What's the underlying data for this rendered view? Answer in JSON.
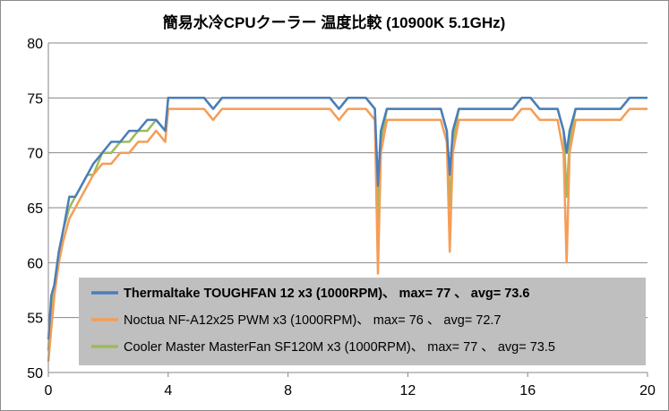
{
  "chart_data": {
    "type": "line",
    "title": "簡易水冷CPUクーラー 温度比較 (10900K 5.1GHz)",
    "xlabel": "",
    "ylabel": "",
    "xlim": [
      0,
      20
    ],
    "ylim": [
      50,
      80
    ],
    "x_ticks": [
      0,
      4,
      8,
      12,
      16,
      20
    ],
    "y_ticks": [
      50,
      55,
      60,
      65,
      70,
      75,
      80
    ],
    "grid": "horizontal",
    "legend_position": "bottom-right, inside plot",
    "series": [
      {
        "name": "Thermaltake TOUGHFAN 12 x3 (1000RPM)、 max= 77 、 avg= 73.6",
        "color": "#4a7ebb",
        "bold_label": true,
        "x": [
          0,
          0.1,
          0.2,
          0.35,
          0.5,
          0.7,
          0.9,
          1.1,
          1.3,
          1.5,
          1.8,
          2.1,
          2.4,
          2.7,
          3.0,
          3.3,
          3.6,
          3.9,
          4.0,
          4.3,
          4.6,
          4.9,
          5.2,
          5.5,
          5.8,
          6.1,
          6.4,
          6.7,
          7.0,
          7.3,
          7.6,
          7.9,
          8.2,
          8.5,
          8.8,
          9.1,
          9.4,
          9.7,
          10.0,
          10.3,
          10.6,
          10.9,
          11.0,
          11.1,
          11.3,
          11.6,
          11.9,
          12.2,
          12.5,
          12.8,
          13.1,
          13.3,
          13.4,
          13.5,
          13.7,
          14.0,
          14.3,
          14.6,
          14.9,
          15.2,
          15.5,
          15.8,
          16.1,
          16.4,
          16.7,
          17.0,
          17.2,
          17.3,
          17.4,
          17.6,
          17.9,
          18.2,
          18.5,
          18.8,
          19.1,
          19.4,
          19.7,
          20.0
        ],
        "values": [
          53,
          57,
          58,
          61,
          63,
          66,
          66,
          67,
          68,
          69,
          70,
          71,
          71,
          72,
          72,
          73,
          73,
          72,
          75,
          75,
          75,
          75,
          75,
          74,
          75,
          75,
          75,
          75,
          75,
          75,
          75,
          75,
          75,
          75,
          75,
          75,
          75,
          74,
          75,
          75,
          75,
          74,
          67,
          72,
          74,
          74,
          74,
          74,
          74,
          74,
          74,
          72,
          68,
          72,
          74,
          74,
          74,
          74,
          74,
          74,
          74,
          75,
          75,
          74,
          74,
          74,
          72,
          70,
          72,
          74,
          74,
          74,
          74,
          74,
          74,
          75,
          75,
          75
        ]
      },
      {
        "name": "Noctua NF-A12x25 PWM x3 (1000RPM)、 max= 76 、 avg= 72.7",
        "color": "#f59d56",
        "bold_label": false,
        "x": [
          0,
          0.1,
          0.2,
          0.35,
          0.5,
          0.7,
          0.9,
          1.1,
          1.3,
          1.5,
          1.8,
          2.1,
          2.4,
          2.7,
          3.0,
          3.3,
          3.6,
          3.9,
          4.0,
          4.3,
          4.6,
          4.9,
          5.2,
          5.5,
          5.8,
          6.1,
          6.4,
          6.7,
          7.0,
          7.3,
          7.6,
          7.9,
          8.2,
          8.5,
          8.8,
          9.1,
          9.4,
          9.7,
          10.0,
          10.3,
          10.6,
          10.9,
          11.0,
          11.1,
          11.3,
          11.6,
          11.9,
          12.2,
          12.5,
          12.8,
          13.1,
          13.3,
          13.4,
          13.5,
          13.7,
          14.0,
          14.3,
          14.6,
          14.9,
          15.2,
          15.5,
          15.8,
          16.1,
          16.4,
          16.7,
          17.0,
          17.2,
          17.3,
          17.4,
          17.6,
          17.9,
          18.2,
          18.5,
          18.8,
          19.1,
          19.4,
          19.7,
          20.0
        ],
        "values": [
          51,
          54,
          57,
          60,
          62,
          64,
          65,
          66,
          67,
          68,
          69,
          69,
          70,
          70,
          71,
          71,
          72,
          71,
          74,
          74,
          74,
          74,
          74,
          73,
          74,
          74,
          74,
          74,
          74,
          74,
          74,
          74,
          74,
          74,
          74,
          74,
          74,
          73,
          74,
          74,
          74,
          73,
          59,
          70,
          73,
          73,
          73,
          73,
          73,
          73,
          73,
          71,
          61,
          70,
          73,
          73,
          73,
          73,
          73,
          73,
          73,
          74,
          74,
          73,
          73,
          73,
          70,
          60,
          70,
          73,
          73,
          73,
          73,
          73,
          73,
          74,
          74,
          74
        ]
      },
      {
        "name": "Cooler Master MasterFan SF120M x3 (1000RPM)、 max= 77 、 avg= 73.5",
        "color": "#9bbb59",
        "bold_label": false,
        "x": [
          0,
          0.1,
          0.2,
          0.35,
          0.5,
          0.7,
          0.9,
          1.1,
          1.3,
          1.5,
          1.8,
          2.1,
          2.4,
          2.7,
          3.0,
          3.3,
          3.6,
          3.9,
          4.0,
          4.3,
          4.6,
          4.9,
          5.2,
          5.5,
          5.8,
          6.1,
          6.4,
          6.7,
          7.0,
          7.3,
          7.6,
          7.9,
          8.2,
          8.5,
          8.8,
          9.1,
          9.4,
          9.7,
          10.0,
          10.3,
          10.6,
          10.9,
          11.0,
          11.1,
          11.3,
          11.6,
          11.9,
          12.2,
          12.5,
          12.8,
          13.1,
          13.3,
          13.4,
          13.5,
          13.7,
          14.0,
          14.3,
          14.6,
          14.9,
          15.2,
          15.5,
          15.8,
          16.1,
          16.4,
          16.7,
          17.0,
          17.2,
          17.3,
          17.4,
          17.6,
          17.9,
          18.2,
          18.5,
          18.8,
          19.1,
          19.4,
          19.7,
          20.0
        ],
        "values": [
          52,
          56,
          58,
          61,
          63,
          65,
          66,
          67,
          68,
          68,
          70,
          70,
          71,
          71,
          72,
          72,
          73,
          72,
          75,
          75,
          75,
          75,
          75,
          74,
          75,
          75,
          75,
          75,
          75,
          75,
          75,
          75,
          75,
          75,
          75,
          75,
          75,
          74,
          75,
          75,
          75,
          74,
          64,
          71,
          74,
          74,
          74,
          74,
          74,
          74,
          74,
          72,
          65,
          71,
          74,
          74,
          74,
          74,
          74,
          74,
          74,
          75,
          75,
          74,
          74,
          74,
          72,
          66,
          71,
          74,
          74,
          74,
          74,
          74,
          74,
          75,
          75,
          75
        ]
      }
    ]
  }
}
